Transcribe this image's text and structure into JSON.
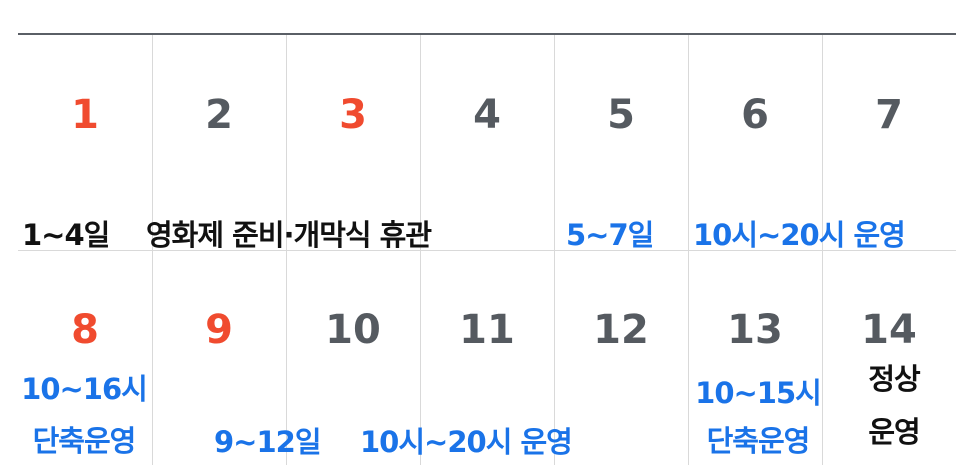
{
  "calendar": {
    "colors": {
      "holiday": "#f04b2f",
      "weekday": "#555a60",
      "blue_note": "#1a73e8",
      "black_note": "#111111"
    },
    "week1": {
      "days": [
        "1",
        "2",
        "3",
        "4",
        "5",
        "6",
        "7"
      ],
      "notes": {
        "closure_range": "1~4일",
        "closure_text": "영화제 준비·개막식 휴관",
        "hours_range": "5~7일",
        "hours_text": "10시~20시 운영"
      }
    },
    "week2": {
      "days": [
        "8",
        "9",
        "10",
        "11",
        "12",
        "13",
        "14"
      ],
      "notes": {
        "d8_hours": "10~16시",
        "d8_label": "단축운영",
        "range_days": "9~12일",
        "range_hours": "10시~20시 운영",
        "d13_hours": "10~15시",
        "d13_label": "단축운영",
        "d14_line1": "정상",
        "d14_line2": "운영"
      }
    }
  }
}
